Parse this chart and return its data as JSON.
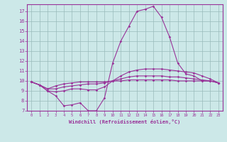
{
  "x": [
    0,
    1,
    2,
    3,
    4,
    5,
    6,
    7,
    8,
    9,
    10,
    11,
    12,
    13,
    14,
    15,
    16,
    17,
    18,
    19,
    20,
    21,
    22,
    23
  ],
  "line1": [
    9.9,
    9.6,
    9.0,
    8.5,
    7.5,
    7.6,
    7.8,
    7.0,
    7.0,
    8.3,
    11.8,
    14.0,
    15.5,
    17.0,
    17.2,
    17.5,
    16.4,
    14.4,
    11.8,
    10.7,
    10.5,
    10.0,
    10.0,
    9.8
  ],
  "line2": [
    9.9,
    9.6,
    9.0,
    8.9,
    9.0,
    9.2,
    9.2,
    9.1,
    9.1,
    9.4,
    10.0,
    10.5,
    10.9,
    11.1,
    11.2,
    11.2,
    11.2,
    11.1,
    11.0,
    10.9,
    10.8,
    10.5,
    10.2,
    9.8
  ],
  "line3": [
    9.9,
    9.6,
    9.2,
    9.2,
    9.4,
    9.5,
    9.6,
    9.7,
    9.7,
    9.8,
    10.0,
    10.2,
    10.4,
    10.5,
    10.5,
    10.5,
    10.5,
    10.4,
    10.4,
    10.3,
    10.2,
    10.1,
    10.0,
    9.8
  ],
  "line4": [
    9.9,
    9.6,
    9.2,
    9.5,
    9.7,
    9.8,
    9.9,
    9.9,
    9.9,
    9.9,
    10.0,
    10.0,
    10.1,
    10.1,
    10.1,
    10.1,
    10.1,
    10.1,
    10.0,
    10.0,
    10.0,
    10.0,
    10.0,
    9.8
  ],
  "color": "#993399",
  "bg_color": "#cce8e8",
  "grid_color": "#99bbbb",
  "ylim": [
    7,
    17.7
  ],
  "xlim": [
    -0.5,
    23.5
  ],
  "yticks": [
    7,
    8,
    9,
    10,
    11,
    12,
    13,
    14,
    15,
    16,
    17
  ],
  "xticks": [
    0,
    1,
    2,
    3,
    4,
    5,
    6,
    7,
    8,
    9,
    10,
    11,
    12,
    13,
    14,
    15,
    16,
    17,
    18,
    19,
    20,
    21,
    22,
    23
  ],
  "xlabel": "Windchill (Refroidissement éolien,°C)",
  "marker": "D",
  "markersize": 1.8,
  "linewidth": 0.8
}
